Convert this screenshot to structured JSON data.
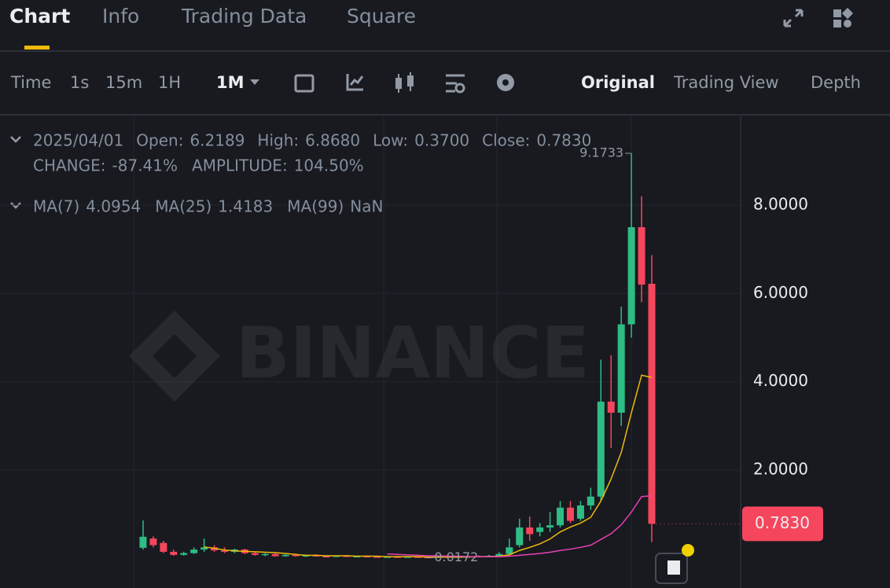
{
  "tabs": [
    "Chart",
    "Info",
    "Trading Data",
    "Square"
  ],
  "toolbar": {
    "intervals": [
      "Time",
      "1s",
      "15m",
      "1H",
      "1M"
    ],
    "views": [
      "Original",
      "Trading View",
      "Depth"
    ]
  },
  "info": {
    "ohlc": [
      [
        "Open:",
        "6.2189"
      ],
      [
        "High:",
        "6.8680"
      ],
      [
        "Low:",
        "0.3700"
      ],
      [
        "Close:",
        "0.7830"
      ]
    ],
    "stats": [
      [
        "CHANGE:",
        "-87.41%"
      ],
      [
        "AMPLITUDE:",
        "104.50%"
      ]
    ],
    "ma_values": [
      "4.0954",
      "1.4183",
      "NaN"
    ]
  },
  "chart_data": {
    "type": "candlestick",
    "categories": [
      null,
      null,
      null,
      null,
      null,
      null,
      null,
      null,
      null,
      null,
      null,
      null,
      null,
      null,
      null,
      null,
      null,
      null,
      null,
      null,
      null,
      null,
      null,
      null,
      null,
      null,
      null,
      null,
      null,
      null,
      null,
      null,
      null,
      null,
      null,
      null,
      null,
      null,
      null,
      null,
      null,
      null,
      null,
      null,
      null,
      null,
      null,
      null,
      null,
      null,
      "2025/04/01"
    ],
    "open": [
      0.24,
      0.45,
      0.35,
      0.15,
      0.08,
      0.12,
      0.2,
      0.25,
      0.18,
      0.15,
      0.2,
      0.12,
      0.08,
      0.1,
      0.05,
      0.08,
      0.05,
      0.07,
      0.05,
      0.04,
      0.06,
      0.04,
      0.05,
      0.04,
      0.03,
      0.04,
      0.03,
      0.04,
      0.03,
      0.02,
      0.04,
      0.03,
      0.04,
      0.05,
      0.04,
      0.06,
      0.1,
      0.3,
      0.7,
      0.6,
      0.7,
      0.75,
      1.15,
      0.9,
      1.2,
      1.4,
      3.55,
      3.3,
      5.3,
      7.5,
      6.2189
    ],
    "high": [
      0.86,
      0.5,
      0.4,
      0.2,
      0.15,
      0.25,
      0.45,
      0.3,
      0.25,
      0.22,
      0.22,
      0.14,
      0.12,
      0.12,
      0.09,
      0.1,
      0.08,
      0.09,
      0.07,
      0.07,
      0.08,
      0.06,
      0.07,
      0.06,
      0.05,
      0.06,
      0.05,
      0.05,
      0.04,
      0.05,
      0.06,
      0.05,
      0.06,
      0.07,
      0.08,
      0.14,
      0.45,
      0.9,
      0.95,
      0.8,
      1.05,
      1.3,
      1.3,
      1.3,
      1.6,
      4.5,
      4.6,
      5.7,
      9.1733,
      8.2,
      6.868
    ],
    "low": [
      0.2,
      0.25,
      0.12,
      0.06,
      0.06,
      0.1,
      0.15,
      0.15,
      0.12,
      0.12,
      0.1,
      0.06,
      0.05,
      0.04,
      0.04,
      0.04,
      0.03,
      0.04,
      0.03,
      0.03,
      0.03,
      0.03,
      0.03,
      0.02,
      0.02,
      0.02,
      0.02,
      0.02,
      0.0172,
      0.02,
      0.02,
      0.02,
      0.03,
      0.03,
      0.03,
      0.05,
      0.08,
      0.25,
      0.4,
      0.5,
      0.6,
      0.7,
      0.8,
      0.85,
      1.1,
      1.3,
      2.5,
      3.0,
      5.0,
      5.8,
      0.37
    ],
    "close": [
      0.49,
      0.3,
      0.15,
      0.08,
      0.12,
      0.2,
      0.25,
      0.18,
      0.15,
      0.2,
      0.12,
      0.08,
      0.1,
      0.05,
      0.08,
      0.05,
      0.07,
      0.05,
      0.04,
      0.06,
      0.04,
      0.05,
      0.04,
      0.03,
      0.04,
      0.03,
      0.04,
      0.03,
      0.02,
      0.04,
      0.03,
      0.04,
      0.05,
      0.04,
      0.06,
      0.1,
      0.25,
      0.7,
      0.55,
      0.7,
      0.75,
      1.15,
      0.85,
      1.2,
      1.4,
      3.55,
      3.3,
      5.3,
      7.5,
      6.2,
      0.783
    ],
    "up_color": "#2ebd85",
    "down_color": "#f6465d",
    "series": [
      {
        "name": "MA(7)",
        "color": "#f0b90b",
        "values": [
          null,
          null,
          null,
          null,
          null,
          null,
          0.26,
          0.23,
          0.19,
          0.17,
          0.16,
          0.15,
          0.14,
          0.13,
          0.11,
          0.09,
          0.07,
          0.07,
          0.06,
          0.06,
          0.06,
          0.05,
          0.05,
          0.05,
          0.04,
          0.04,
          0.04,
          0.04,
          0.03,
          0.03,
          0.03,
          0.03,
          0.03,
          0.04,
          0.04,
          0.05,
          0.08,
          0.18,
          0.25,
          0.33,
          0.44,
          0.6,
          0.71,
          0.8,
          0.93,
          1.3,
          1.8,
          2.4,
          3.3,
          4.15,
          4.0954
        ]
      },
      {
        "name": "MA(25)",
        "color": "#eb40b5",
        "values": [
          null,
          null,
          null,
          null,
          null,
          null,
          null,
          null,
          null,
          null,
          null,
          null,
          null,
          null,
          null,
          null,
          null,
          null,
          null,
          null,
          null,
          null,
          null,
          null,
          0.1,
          0.09,
          0.08,
          0.07,
          0.06,
          0.06,
          0.05,
          0.05,
          0.04,
          0.04,
          0.04,
          0.04,
          0.05,
          0.07,
          0.09,
          0.11,
          0.14,
          0.18,
          0.21,
          0.25,
          0.3,
          0.43,
          0.56,
          0.76,
          1.05,
          1.4,
          1.4183
        ]
      },
      {
        "name": "MA(99)",
        "color": "#b27cf0",
        "values": [
          null,
          null,
          null,
          null,
          null,
          null,
          null,
          null,
          null,
          null,
          null,
          null,
          null,
          null,
          null,
          null,
          null,
          null,
          null,
          null,
          null,
          null,
          null,
          null,
          null,
          null,
          null,
          null,
          null,
          null,
          null,
          null,
          null,
          null,
          null,
          null,
          null,
          null,
          null,
          null,
          null,
          null,
          null,
          null,
          null,
          null,
          null,
          null,
          null,
          null,
          null
        ]
      }
    ],
    "ylim": [
      -0.67,
      10.01
    ],
    "yticks": [
      {
        "value": 2,
        "label": "2.0000"
      },
      {
        "value": 4,
        "label": "4.0000"
      },
      {
        "value": 6,
        "label": "6.0000"
      },
      {
        "value": 8,
        "label": "8.0000"
      }
    ],
    "grid": true,
    "annotations": [
      {
        "text": "9.1733",
        "value": 9.1733,
        "index": 48
      },
      {
        "text": "0.0172",
        "value": 0.0172,
        "index": 28
      }
    ],
    "last_price": {
      "value": 0.783,
      "label": "0.7830"
    },
    "watermark": "BINANCE"
  }
}
